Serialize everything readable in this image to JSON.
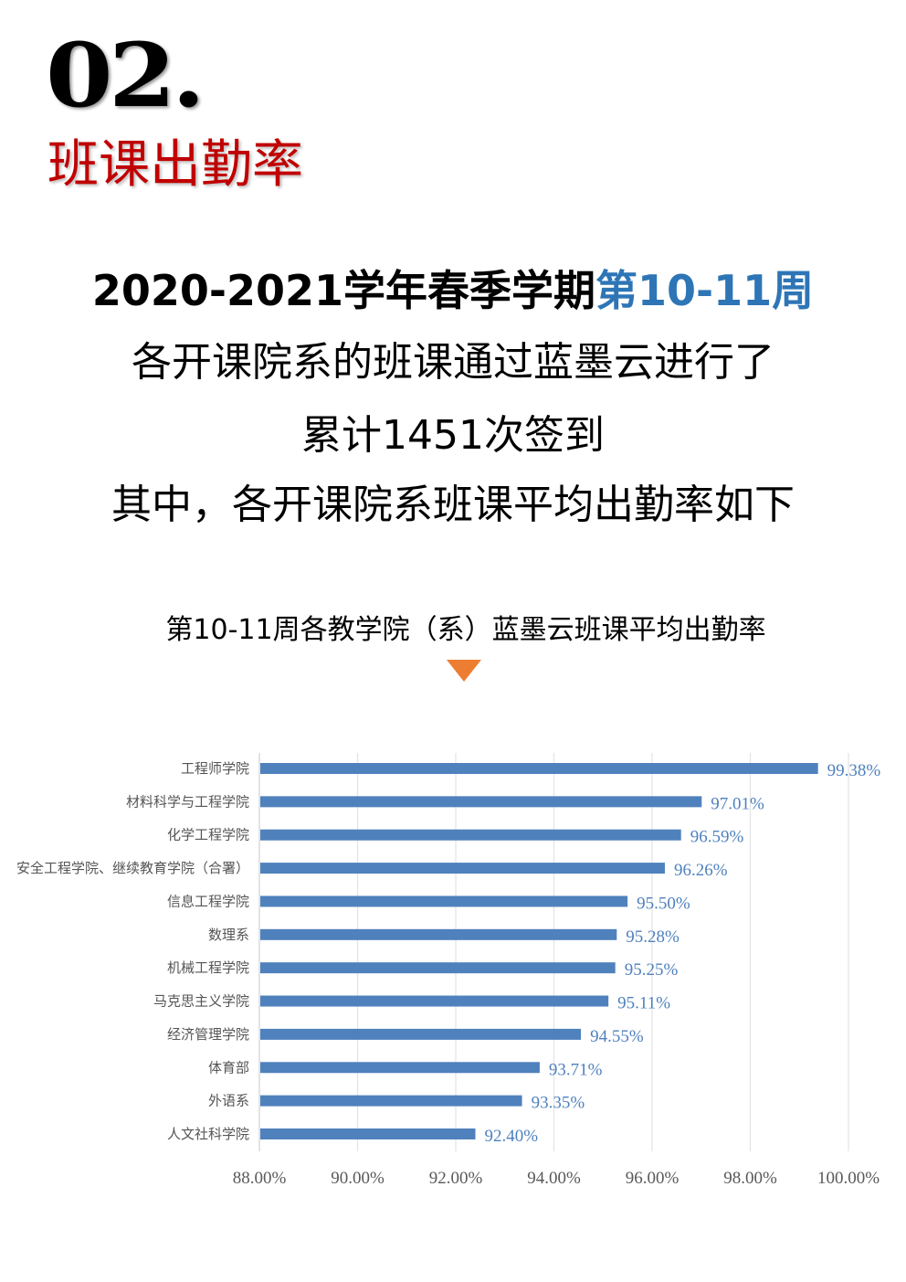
{
  "header": {
    "number": "02.",
    "section_title": "班课出勤率"
  },
  "intro": {
    "line1_prefix": "2020-2021学年春季学期",
    "line1_highlight": "第10-11周",
    "line2": "各开课院系的班课通过蓝墨云进行了",
    "line3": "累计1451次签到",
    "line4": "其中，各开课院系班课平均出勤率如下"
  },
  "colors": {
    "bar": "#4f81bd",
    "highlight": "#2e75b6",
    "section": "#c00000",
    "arrow": "#ed7d31"
  },
  "chart_data": {
    "type": "bar",
    "orientation": "horizontal",
    "title": "第10-11周各教学院（系）蓝墨云班课平均出勤率",
    "categories": [
      "工程师学院",
      "材料科学与工程学院",
      "化学工程学院",
      "安全工程学院、继续教育学院（合署）",
      "信息工程学院",
      "数理系",
      "机械工程学院",
      "马克思主义学院",
      "经济管理学院",
      "体育部",
      "外语系",
      "人文社科学院"
    ],
    "values": [
      99.38,
      97.01,
      96.59,
      96.26,
      95.5,
      95.28,
      95.25,
      95.11,
      94.55,
      93.71,
      93.35,
      92.4
    ],
    "value_labels": [
      "99.38%",
      "97.01%",
      "96.59%",
      "96.26%",
      "95.50%",
      "95.28%",
      "95.25%",
      "95.11%",
      "94.55%",
      "93.71%",
      "93.35%",
      "92.40%"
    ],
    "xlim": [
      88,
      100
    ],
    "xticks": [
      88,
      90,
      92,
      94,
      96,
      98,
      100
    ],
    "xtick_labels": [
      "88.00%",
      "90.00%",
      "92.00%",
      "94.00%",
      "96.00%",
      "98.00%",
      "100.00%"
    ],
    "grid": true,
    "legend": "none"
  }
}
